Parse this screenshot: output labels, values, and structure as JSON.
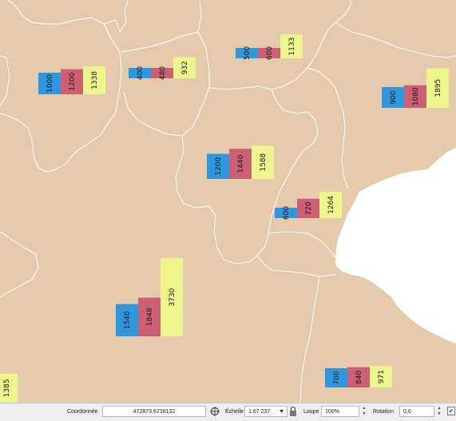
{
  "status_bar": {
    "coord_label": "Coordonnée",
    "coord_value": "472873,6738132",
    "scale_label": "Échelle",
    "scale_value": "1:67 237",
    "magnifier_label": "Loupe",
    "magnifier_value": "100%",
    "rotation_label": "Rotation",
    "rotation_value": "0,0",
    "render_checked": true
  },
  "colors": {
    "land": "#e5cbab",
    "sea": "#ffffff",
    "boundary": "#ffffff",
    "series": [
      "#2f96e0",
      "#cc5f74",
      "#eef58d"
    ]
  },
  "icons": {
    "coord_toggle": "mouse-coordinate-icon",
    "lock": "lock-icon",
    "dropdown": "chevron-down-icon"
  },
  "chart_data": {
    "type": "bar",
    "subtype": "map-embedded-bar-charts",
    "legend": "none",
    "groups": [
      {
        "values": [
          1000,
          1200,
          1338
        ]
      },
      {
        "values": [
          400,
          480,
          932
        ]
      },
      {
        "values": [
          500,
          600,
          1133
        ]
      },
      {
        "values": [
          900,
          1080,
          1895
        ]
      },
      {
        "values": [
          1200,
          1440,
          1588
        ]
      },
      {
        "values": [
          600,
          720,
          1264
        ]
      },
      {
        "values": [
          1540,
          1848,
          3730
        ]
      },
      {
        "values": [
          700,
          840,
          971
        ]
      },
      {
        "values": [
          1385
        ]
      }
    ]
  }
}
